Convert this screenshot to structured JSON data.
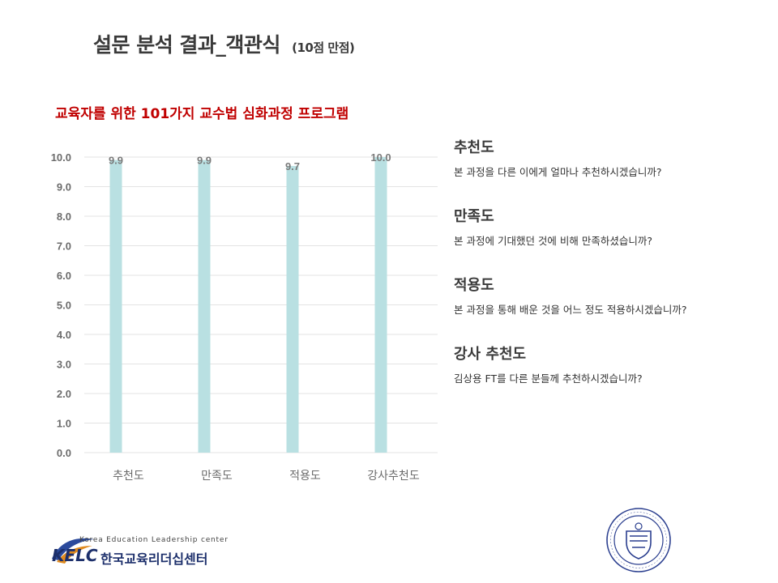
{
  "slide": {
    "title": "설문 분석 결과_객관식",
    "title_sub": "(10점 만점)"
  },
  "chart_data": {
    "type": "bar",
    "title": "교육자를 위한 101가지 교수법 심화과정 프로그램",
    "categories": [
      "추천도",
      "만족도",
      "적용도",
      "강사추천도"
    ],
    "values": [
      9.9,
      9.9,
      9.7,
      10.0
    ],
    "value_labels": [
      "9.9",
      "9.9",
      "9.7",
      "10.0"
    ],
    "y_ticks": [
      "0.0",
      "1.0",
      "2.0",
      "3.0",
      "4.0",
      "5.0",
      "6.0",
      "7.0",
      "8.0",
      "9.0",
      "10.0"
    ],
    "ylim": [
      0,
      10
    ],
    "grid": true,
    "bar_color": "#b9e0e2",
    "title_color": "#c00000"
  },
  "questions": [
    {
      "heading": "추천도",
      "text": "본 과정을 다른 이에게 얼마나 추천하시겠습니까?"
    },
    {
      "heading": "만족도",
      "text": "본 과정에 기대했던 것에 비해 만족하셨습니까?"
    },
    {
      "heading": "적용도",
      "text": "본 과정을 통해 배운 것을 어느 정도 적용하시겠습니까?"
    },
    {
      "heading": "강사 추천도",
      "text": "김상용 FT를 다른 분들께 추천하시겠습니까?"
    }
  ],
  "logo": {
    "english": "Korea Education Leadership center",
    "abbr": "KELC",
    "korean": "한국교육리더십센터"
  }
}
